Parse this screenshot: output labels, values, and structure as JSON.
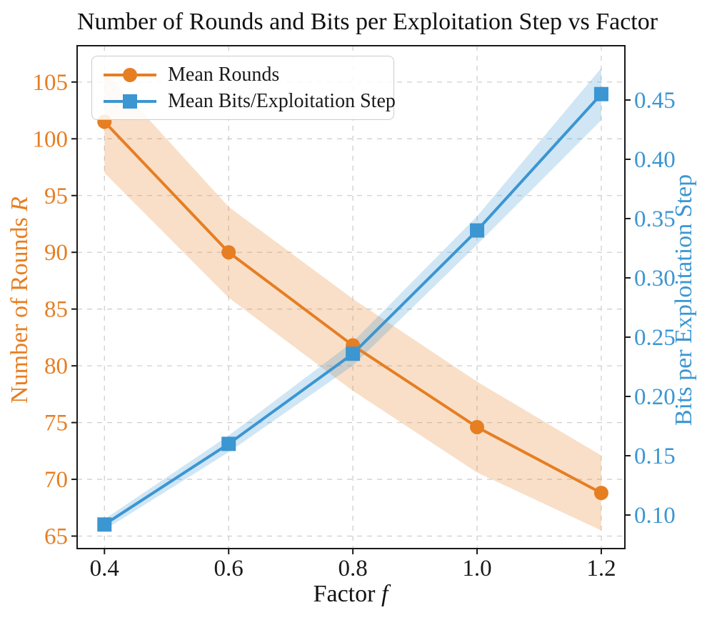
{
  "chart_data": {
    "type": "line",
    "title": "Number of Rounds and Bits per Exploitation Step vs Factor",
    "x": [
      0.4,
      0.6,
      0.8,
      1.0,
      1.2
    ],
    "xlabel": "Factor",
    "xlabel_math": "f",
    "xlim": [
      0.356,
      1.238
    ],
    "xticks": {
      "values": [
        0.4,
        0.6,
        0.8,
        1.0,
        1.2
      ],
      "labels": [
        "0.4",
        "0.6",
        "0.8",
        "1.0",
        "1.2"
      ]
    },
    "left_axis": {
      "label": "Number of Rounds",
      "label_math": "R",
      "color": "#E67E22",
      "lim": [
        63.9,
        108.2
      ],
      "tick_values": [
        65,
        70,
        75,
        80,
        85,
        90,
        95,
        100,
        105
      ],
      "tick_labels": [
        "65",
        "70",
        "75",
        "80",
        "85",
        "90",
        "95",
        "100",
        "105"
      ]
    },
    "right_axis": {
      "label": "Bits per Exploitation Step",
      "color": "#3B96D2",
      "lim": [
        0.0717,
        0.4958
      ],
      "tick_values": [
        0.1,
        0.15,
        0.2,
        0.25,
        0.3,
        0.35,
        0.4,
        0.45
      ],
      "tick_labels": [
        "0.10",
        "0.15",
        "0.20",
        "0.25",
        "0.30",
        "0.35",
        "0.40",
        "0.45"
      ]
    },
    "grid": {
      "show": true,
      "color": "#cfcfcf",
      "dash": "7 7",
      "width": 1.3
    },
    "frame": {
      "color": "#1a1a1a",
      "width": 2,
      "tick_length": 8
    },
    "series": [
      {
        "name": "Mean Rounds",
        "axis": "left",
        "color": "#E67E22",
        "band_fill": "rgba(230,126,34,0.25)",
        "marker": "circle",
        "marker_size": 10,
        "line_width": 4,
        "values": [
          101.5,
          90.0,
          81.8,
          74.6,
          68.8
        ],
        "band_lower": [
          97.0,
          86.0,
          77.8,
          70.6,
          65.5
        ],
        "band_upper": [
          106.0,
          94.0,
          85.9,
          78.6,
          72.1
        ]
      },
      {
        "name": "Mean Bits/Exploitation Step",
        "axis": "right",
        "color": "#3B96D2",
        "band_fill": "rgba(59,150,210,0.24)",
        "marker": "square",
        "marker_size": 10,
        "line_width": 4,
        "values": [
          0.092,
          0.16,
          0.236,
          0.34,
          0.455
        ],
        "band_lower": [
          0.0875,
          0.153,
          0.226,
          0.328,
          0.433
        ],
        "band_upper": [
          0.0965,
          0.167,
          0.246,
          0.352,
          0.477
        ]
      }
    ],
    "legend": {
      "position": "upper left"
    }
  }
}
